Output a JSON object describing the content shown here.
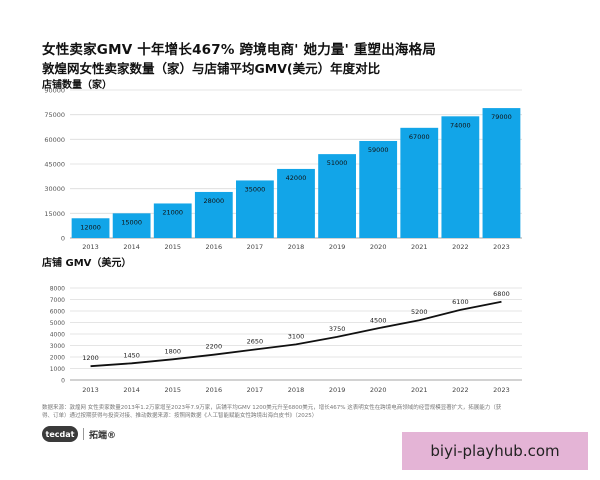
{
  "header": {
    "title": "女性卖家GMV 十年增长467%  跨境电商' 她力量' 重塑出海格局",
    "subtitle": "敦煌网女性卖家数量（家）与店铺平均GMV(美元）年度对比"
  },
  "chart_data": [
    {
      "type": "bar",
      "ylabel": "店铺数量（家）",
      "categories": [
        "2013",
        "2014",
        "2015",
        "2016",
        "2017",
        "2018",
        "2019",
        "2020",
        "2021",
        "2022",
        "2023"
      ],
      "values": [
        12000,
        15000,
        21000,
        28000,
        35000,
        42000,
        51000,
        59000,
        67000,
        74000,
        79000
      ],
      "yticks": [
        0,
        15000,
        30000,
        45000,
        60000,
        75000,
        90000
      ],
      "ylim": [
        0,
        90000
      ],
      "grid": true,
      "color": "#12a5e8"
    },
    {
      "type": "line",
      "ylabel": "店铺 GMV（美元）",
      "categories": [
        "2013",
        "2014",
        "2015",
        "2016",
        "2017",
        "2018",
        "2019",
        "2020",
        "2021",
        "2022",
        "2023"
      ],
      "values": [
        1200,
        1450,
        1800,
        2200,
        2650,
        3100,
        3750,
        4500,
        5200,
        6100,
        6800
      ],
      "yticks": [
        0,
        1000,
        2000,
        3000,
        4000,
        5000,
        6000,
        7000,
        8000
      ],
      "ylim": [
        0,
        8000
      ],
      "grid": true,
      "color": "#111111"
    }
  ],
  "footer": {
    "note": "数据来源：敦煌网 女性卖家数量2013年1.2万家增至2023年7.9万家，店铺平均GMV 1200美元升至6800美元，增长467%  这表明女性在跨境电商领域的经营规模显著扩大，拓展能力（获得、订单）通过按期获得与投资对接、推动数据来源：按照网数据《人工智能赋能女性跨境出海白皮书》（2025）",
    "brand_logo": "tecdat",
    "brand_name": "拓端®",
    "watermark": "biyi-playhub.com"
  }
}
